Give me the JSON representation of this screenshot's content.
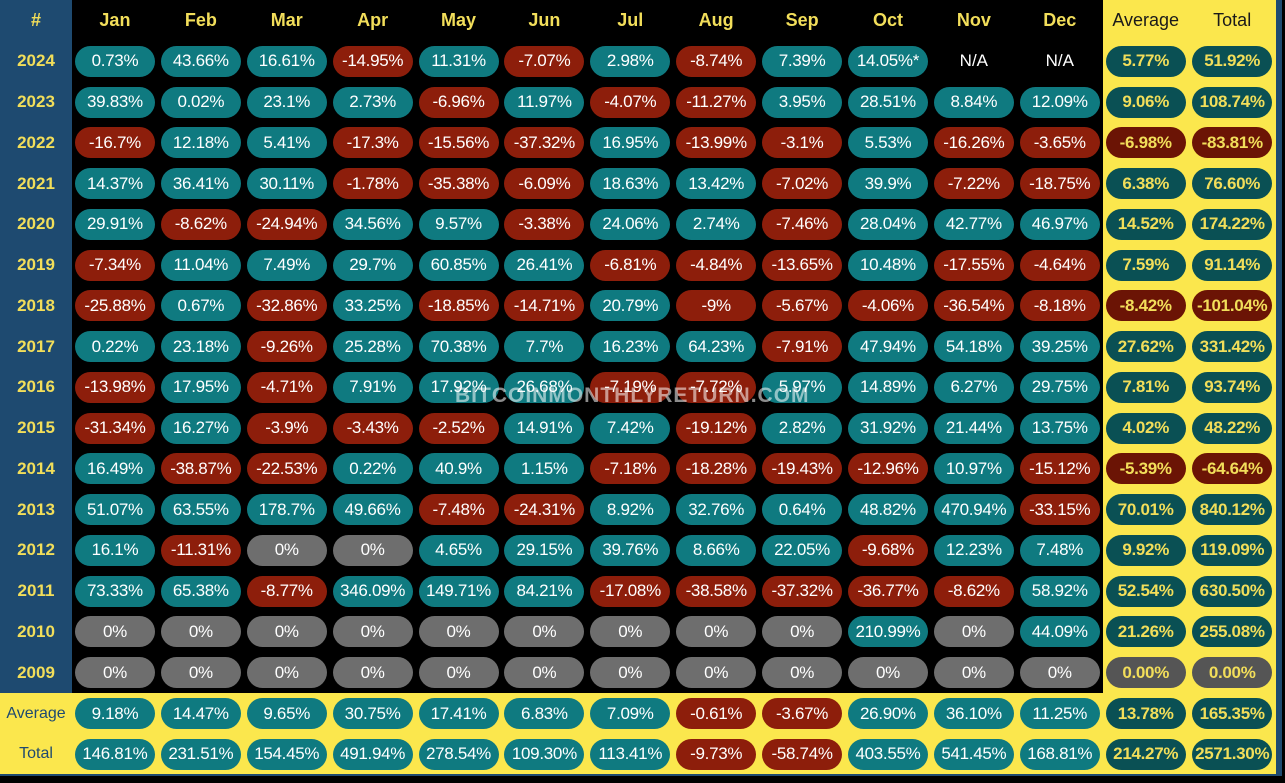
{
  "header": {
    "corner": "#",
    "months": [
      "Jan",
      "Feb",
      "Mar",
      "Apr",
      "May",
      "Jun",
      "Jul",
      "Aug",
      "Sep",
      "Oct",
      "Nov",
      "Dec"
    ],
    "average": "Average",
    "total": "Total"
  },
  "colors": {
    "positive": "#0f7a80",
    "negative": "#8d1e0b",
    "zero": "#6e6e6e",
    "header_yellow": "#fbe74d",
    "year_column": "#1e4a70",
    "label_text": "#f2de5a"
  },
  "rows": [
    {
      "year": "2024",
      "values": [
        "0.73%",
        "43.66%",
        "16.61%",
        "-14.95%",
        "11.31%",
        "-7.07%",
        "2.98%",
        "-8.74%",
        "7.39%",
        "14.05%*",
        "N/A",
        "N/A"
      ],
      "average": "5.77%",
      "total": "51.92%"
    },
    {
      "year": "2023",
      "values": [
        "39.83%",
        "0.02%",
        "23.1%",
        "2.73%",
        "-6.96%",
        "11.97%",
        "-4.07%",
        "-11.27%",
        "3.95%",
        "28.51%",
        "8.84%",
        "12.09%"
      ],
      "average": "9.06%",
      "total": "108.74%"
    },
    {
      "year": "2022",
      "values": [
        "-16.7%",
        "12.18%",
        "5.41%",
        "-17.3%",
        "-15.56%",
        "-37.32%",
        "16.95%",
        "-13.99%",
        "-3.1%",
        "5.53%",
        "-16.26%",
        "-3.65%"
      ],
      "average": "-6.98%",
      "total": "-83.81%"
    },
    {
      "year": "2021",
      "values": [
        "14.37%",
        "36.41%",
        "30.11%",
        "-1.78%",
        "-35.38%",
        "-6.09%",
        "18.63%",
        "13.42%",
        "-7.02%",
        "39.9%",
        "-7.22%",
        "-18.75%"
      ],
      "average": "6.38%",
      "total": "76.60%"
    },
    {
      "year": "2020",
      "values": [
        "29.91%",
        "-8.62%",
        "-24.94%",
        "34.56%",
        "9.57%",
        "-3.38%",
        "24.06%",
        "2.74%",
        "-7.46%",
        "28.04%",
        "42.77%",
        "46.97%"
      ],
      "average": "14.52%",
      "total": "174.22%"
    },
    {
      "year": "2019",
      "values": [
        "-7.34%",
        "11.04%",
        "7.49%",
        "29.7%",
        "60.85%",
        "26.41%",
        "-6.81%",
        "-4.84%",
        "-13.65%",
        "10.48%",
        "-17.55%",
        "-4.64%"
      ],
      "average": "7.59%",
      "total": "91.14%"
    },
    {
      "year": "2018",
      "values": [
        "-25.88%",
        "0.67%",
        "-32.86%",
        "33.25%",
        "-18.85%",
        "-14.71%",
        "20.79%",
        "-9%",
        "-5.67%",
        "-4.06%",
        "-36.54%",
        "-8.18%"
      ],
      "average": "-8.42%",
      "total": "-101.04%"
    },
    {
      "year": "2017",
      "values": [
        "0.22%",
        "23.18%",
        "-9.26%",
        "25.28%",
        "70.38%",
        "7.7%",
        "16.23%",
        "64.23%",
        "-7.91%",
        "47.94%",
        "54.18%",
        "39.25%"
      ],
      "average": "27.62%",
      "total": "331.42%"
    },
    {
      "year": "2016",
      "values": [
        "-13.98%",
        "17.95%",
        "-4.71%",
        "7.91%",
        "17.92%",
        "26.68%",
        "-7.19%",
        "-7.72%",
        "5.97%",
        "14.89%",
        "6.27%",
        "29.75%"
      ],
      "average": "7.81%",
      "total": "93.74%"
    },
    {
      "year": "2015",
      "values": [
        "-31.34%",
        "16.27%",
        "-3.9%",
        "-3.43%",
        "-2.52%",
        "14.91%",
        "7.42%",
        "-19.12%",
        "2.82%",
        "31.92%",
        "21.44%",
        "13.75%"
      ],
      "average": "4.02%",
      "total": "48.22%"
    },
    {
      "year": "2014",
      "values": [
        "16.49%",
        "-38.87%",
        "-22.53%",
        "0.22%",
        "40.9%",
        "1.15%",
        "-7.18%",
        "-18.28%",
        "-19.43%",
        "-12.96%",
        "10.97%",
        "-15.12%"
      ],
      "average": "-5.39%",
      "total": "-64.64%"
    },
    {
      "year": "2013",
      "values": [
        "51.07%",
        "63.55%",
        "178.7%",
        "49.66%",
        "-7.48%",
        "-24.31%",
        "8.92%",
        "32.76%",
        "0.64%",
        "48.82%",
        "470.94%",
        "-33.15%"
      ],
      "average": "70.01%",
      "total": "840.12%"
    },
    {
      "year": "2012",
      "values": [
        "16.1%",
        "-11.31%",
        "0%",
        "0%",
        "4.65%",
        "29.15%",
        "39.76%",
        "8.66%",
        "22.05%",
        "-9.68%",
        "12.23%",
        "7.48%"
      ],
      "average": "9.92%",
      "total": "119.09%"
    },
    {
      "year": "2011",
      "values": [
        "73.33%",
        "65.38%",
        "-8.77%",
        "346.09%",
        "149.71%",
        "84.21%",
        "-17.08%",
        "-38.58%",
        "-37.32%",
        "-36.77%",
        "-8.62%",
        "58.92%"
      ],
      "average": "52.54%",
      "total": "630.50%"
    },
    {
      "year": "2010",
      "values": [
        "0%",
        "0%",
        "0%",
        "0%",
        "0%",
        "0%",
        "0%",
        "0%",
        "0%",
        "210.99%",
        "0%",
        "44.09%"
      ],
      "average": "21.26%",
      "total": "255.08%"
    },
    {
      "year": "2009",
      "values": [
        "0%",
        "0%",
        "0%",
        "0%",
        "0%",
        "0%",
        "0%",
        "0%",
        "0%",
        "0%",
        "0%",
        "0%"
      ],
      "average": "0.00%",
      "total": "0.00%"
    }
  ],
  "summary": [
    {
      "label": "Average",
      "values": [
        "9.18%",
        "14.47%",
        "9.65%",
        "30.75%",
        "17.41%",
        "6.83%",
        "7.09%",
        "-0.61%",
        "-3.67%",
        "26.90%",
        "36.10%",
        "11.25%"
      ],
      "average": "13.78%",
      "total": "165.35%"
    },
    {
      "label": "Total",
      "values": [
        "146.81%",
        "231.51%",
        "154.45%",
        "491.94%",
        "278.54%",
        "109.30%",
        "113.41%",
        "-9.73%",
        "-58.74%",
        "403.55%",
        "541.45%",
        "168.81%"
      ],
      "average": "214.27%",
      "total": "2571.30%"
    }
  ],
  "watermark": "BITCOINMONTHLYRETURN.COM"
}
